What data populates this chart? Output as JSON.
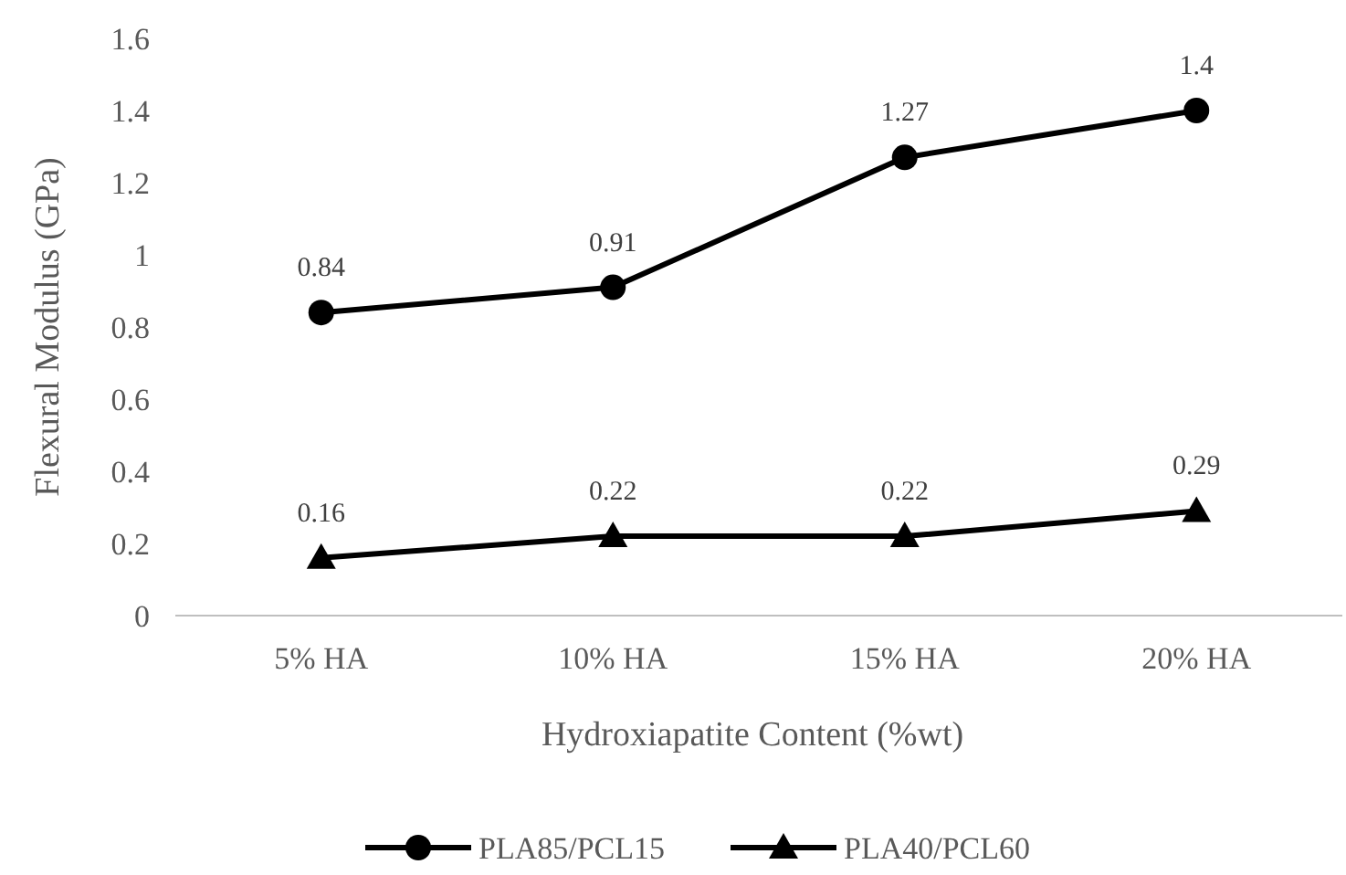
{
  "chart_data": {
    "type": "line",
    "xlabel": "Hydroxiapatite Content (%wt)",
    "ylabel": "Flexural Modulus (GPa)",
    "categories": [
      "5% HA",
      "10% HA",
      "15% HA",
      "20% HA"
    ],
    "series": [
      {
        "name": "PLA85/PCL15",
        "color": "#000000",
        "marker": "circle",
        "values": [
          0.84,
          0.91,
          1.27,
          1.4
        ]
      },
      {
        "name": "PLA40/PCL60",
        "color": "#000000",
        "marker": "triangle",
        "values": [
          0.16,
          0.22,
          0.22,
          0.29
        ]
      }
    ],
    "ylim": [
      0,
      1.6
    ],
    "yticks": [
      0,
      0.2,
      0.4,
      0.6,
      0.8,
      1,
      1.2,
      1.4,
      1.6
    ],
    "grid": false,
    "legend": "bottom",
    "data_labels": true,
    "line_style": "solid"
  }
}
